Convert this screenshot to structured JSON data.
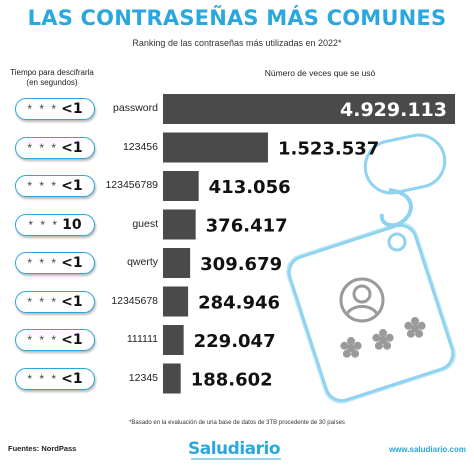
{
  "title": "LAS CONTRASEÑAS MÁS COMUNES",
  "subtitle": "Ranking de las contraseñas más utilizadas en 2022*",
  "header_left": "Tiempo para descifrarla\n(en segundos)",
  "header_right": "Número de veces que se usó",
  "mask_stars": "* * *",
  "footnote": "*Basado en la evaluación de una base de datos de 3TB procedente de 30 países",
  "sources": "Fuentes: NordPass",
  "brand": "Saludiario",
  "website": "www.saludiario.com",
  "colors": {
    "accent": "#2aa7de",
    "bar": "#4a4a4a",
    "deco": "#8fd3f0"
  },
  "chart_data": {
    "type": "bar",
    "orientation": "horizontal",
    "title": "LAS CONTRASEÑAS MÁS COMUNES",
    "subtitle": "Ranking de las contraseñas más utilizadas en 2022*",
    "xlabel": "Número de veces que se usó",
    "categories": [
      "password",
      "123456",
      "123456789",
      "guest",
      "qwerty",
      "12345678",
      "111111",
      "12345"
    ],
    "values": [
      4929113,
      1523537,
      413056,
      376417,
      309679,
      284946,
      229047,
      188602
    ],
    "value_labels": [
      "4.929.113",
      "1.523.537",
      "413.056",
      "376.417",
      "309.679",
      "284.946",
      "229.047",
      "188.602"
    ],
    "crack_time_labels": [
      "<1",
      "<1",
      "<1",
      "10",
      "<1",
      "<1",
      "<1",
      "<1"
    ],
    "crack_time_header": "Tiempo para descifrarla (en segundos)",
    "scale": "logarithmic",
    "grid": false,
    "legend": "none"
  }
}
